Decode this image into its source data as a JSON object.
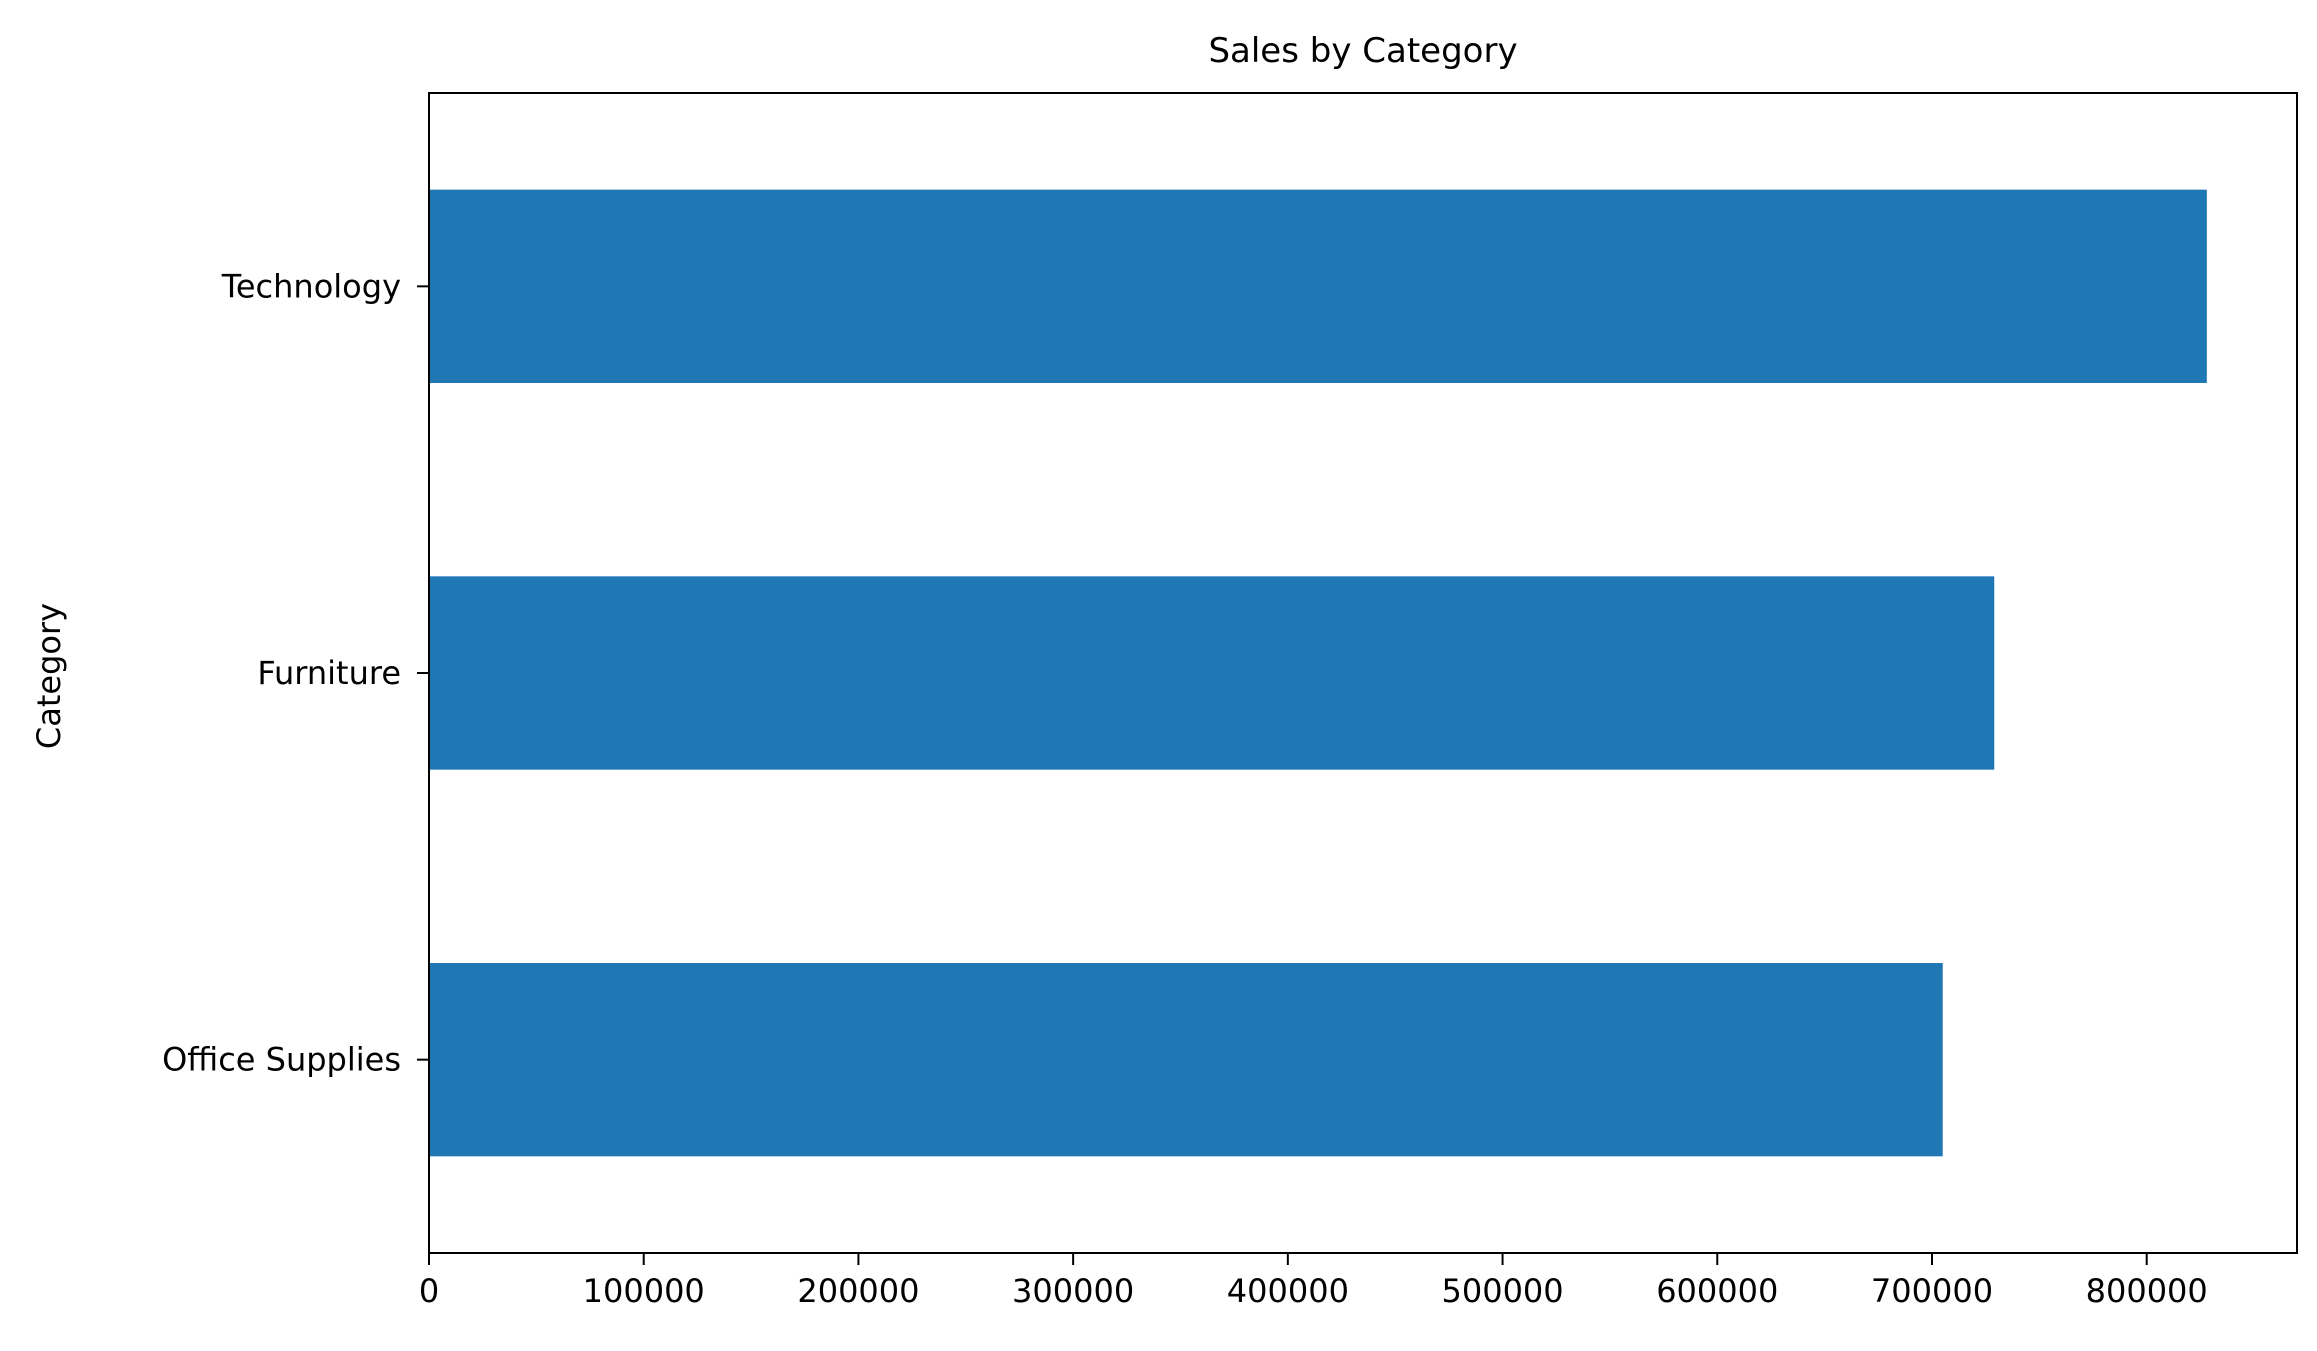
{
  "chart_data": {
    "type": "bar",
    "orientation": "horizontal",
    "title": "Sales by Category",
    "xlabel": "",
    "ylabel": "Category",
    "categories": [
      "Office Supplies",
      "Furniture",
      "Technology"
    ],
    "values": [
      705000,
      729000,
      828000
    ],
    "xlim": [
      0,
      870000
    ],
    "xticks": [
      0,
      100000,
      200000,
      300000,
      400000,
      500000,
      600000,
      700000,
      800000
    ],
    "xtick_labels": [
      "0",
      "100000",
      "200000",
      "300000",
      "400000",
      "500000",
      "600000",
      "700000",
      "800000"
    ],
    "grid": false,
    "legend": "none",
    "bar_color": "#1f77b4"
  }
}
